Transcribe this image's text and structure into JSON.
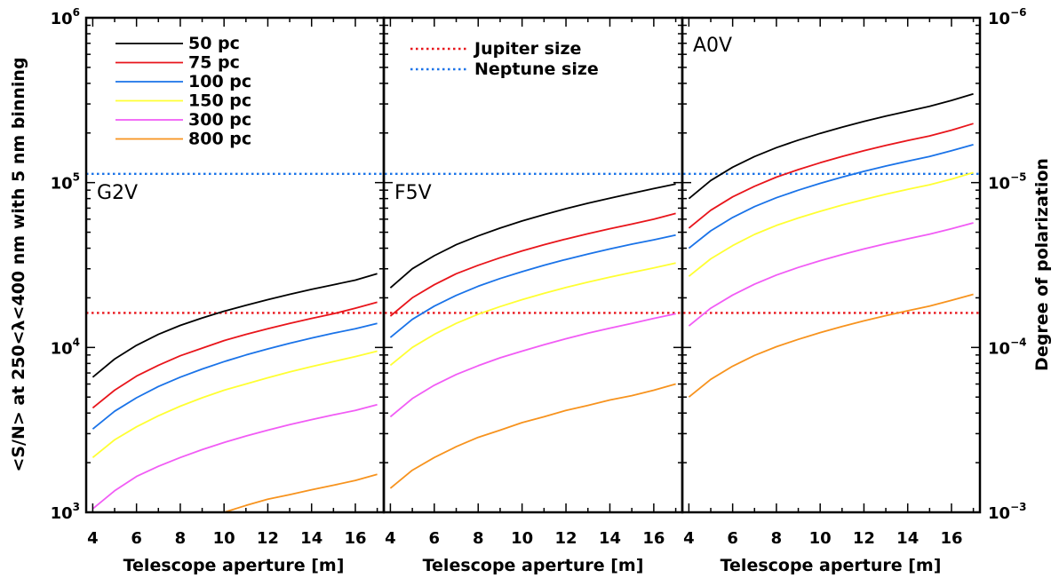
{
  "chart_data": {
    "type": "line",
    "xlabel": "Telescope aperture [m]",
    "ylabel": "<S/N> at 250<λ<400 nm with 5 nm binning",
    "ylabel_right": "Degree of polarization",
    "xlim": [
      3.7,
      17.3
    ],
    "xticks": [
      4,
      6,
      8,
      10,
      12,
      14,
      16
    ],
    "ylim": [
      1000,
      1000000
    ],
    "yscale": "log",
    "yticks_left": [
      {
        "value": 1000,
        "base": "10",
        "exp": "3"
      },
      {
        "value": 10000,
        "base": "10",
        "exp": "4"
      },
      {
        "value": 100000,
        "base": "10",
        "exp": "5"
      },
      {
        "value": 1000000,
        "base": "10",
        "exp": "6"
      }
    ],
    "yticks_right": [
      {
        "value": 1000,
        "base": "10",
        "exp": "−3"
      },
      {
        "value": 10000,
        "base": "10",
        "exp": "−4"
      },
      {
        "value": 100000,
        "base": "10",
        "exp": "−5"
      },
      {
        "value": 1000000,
        "base": "10",
        "exp": "−6"
      }
    ],
    "x": [
      4,
      5,
      6,
      7,
      8,
      9,
      10,
      11,
      12,
      13,
      14,
      15,
      16,
      17
    ],
    "colors": {
      "50 pc": "#000000",
      "75 pc": "#e8151b",
      "100 pc": "#1a73e8",
      "150 pc": "#ffff33",
      "300 pc": "#f15cf5",
      "800 pc": "#f7931e"
    },
    "reference_lines": [
      {
        "name": "Jupiter size",
        "value": 16200,
        "color": "#e8151b"
      },
      {
        "name": "Neptune size",
        "value": 113000,
        "color": "#1a73e8"
      }
    ],
    "legend_series": [
      "50 pc",
      "75 pc",
      "100 pc",
      "150 pc",
      "300 pc",
      "800 pc"
    ],
    "legend_position": "top-left",
    "ref_legend_position": "top-center (middle panel)",
    "panels": [
      {
        "title": "G2V",
        "series": [
          {
            "name": "50 pc",
            "values": [
              6600,
              8500,
              10300,
              12000,
              13600,
              15100,
              16600,
              18000,
              19500,
              21000,
              22500,
              24000,
              25600,
              28000
            ]
          },
          {
            "name": "75 pc",
            "values": [
              4300,
              5500,
              6700,
              7800,
              8900,
              9900,
              11000,
              12000,
              13000,
              14000,
              15000,
              16000,
              17300,
              18800
            ]
          },
          {
            "name": "100 pc",
            "values": [
              3200,
              4100,
              4950,
              5800,
              6600,
              7400,
              8200,
              9000,
              9800,
              10600,
              11400,
              12200,
              13000,
              14000
            ]
          },
          {
            "name": "150 pc",
            "values": [
              2150,
              2750,
              3300,
              3850,
              4400,
              4950,
              5500,
              6000,
              6550,
              7100,
              7650,
              8200,
              8800,
              9500
            ]
          },
          {
            "name": "300 pc",
            "values": [
              1050,
              1350,
              1650,
              1900,
              2150,
              2400,
              2650,
              2900,
              3150,
              3400,
              3650,
              3900,
              4150,
              4500
            ]
          },
          {
            "name": "800 pc",
            "values": [
              null,
              null,
              null,
              null,
              null,
              null,
              1000,
              1100,
              1200,
              1280,
              1370,
              1460,
              1560,
              1700
            ]
          }
        ]
      },
      {
        "title": "F5V",
        "series": [
          {
            "name": "50 pc",
            "values": [
              23000,
              30000,
              36000,
              42000,
              47500,
              53000,
              58500,
              64000,
              69500,
              75000,
              80500,
              86000,
              92000,
              98000
            ]
          },
          {
            "name": "75 pc",
            "values": [
              15500,
              20000,
              24000,
              28000,
              31500,
              35000,
              38500,
              42000,
              45500,
              49000,
              52500,
              56000,
              60000,
              65000
            ]
          },
          {
            "name": "100 pc",
            "values": [
              11500,
              14800,
              17800,
              20700,
              23500,
              26200,
              28800,
              31500,
              34200,
              36900,
              39600,
              42300,
              45000,
              48000
            ]
          },
          {
            "name": "150 pc",
            "values": [
              7800,
              10000,
              12000,
              14000,
              15900,
              17700,
              19500,
              21300,
              23100,
              24900,
              26700,
              28500,
              30400,
              32500
            ]
          },
          {
            "name": "300 pc",
            "values": [
              3800,
              4900,
              5900,
              6850,
              7750,
              8650,
              9500,
              10400,
              11300,
              12200,
              13100,
              14000,
              15000,
              16000
            ]
          },
          {
            "name": "800 pc",
            "values": [
              1400,
              1800,
              2150,
              2500,
              2850,
              3150,
              3500,
              3800,
              4150,
              4450,
              4800,
              5100,
              5500,
              6000
            ]
          }
        ]
      },
      {
        "title": "A0V",
        "series": [
          {
            "name": "50 pc",
            "values": [
              80000,
              103000,
              124000,
              144000,
              163000,
              181000,
              199000,
              217000,
              235000,
              253000,
              271000,
              290000,
              315000,
              345000
            ]
          },
          {
            "name": "75 pc",
            "values": [
              53000,
              68000,
              82000,
              95000,
              108000,
              120000,
              132000,
              144000,
              156000,
              168000,
              180000,
              192000,
              208000,
              228000
            ]
          },
          {
            "name": "100 pc",
            "values": [
              40000,
              51000,
              61500,
              71500,
              81000,
              90000,
              99000,
              108000,
              117000,
              126000,
              135000,
              144000,
              156000,
              170000
            ]
          },
          {
            "name": "150 pc",
            "values": [
              27000,
              34500,
              41500,
              48500,
              55000,
              61000,
              67000,
              73000,
              79000,
              85000,
              91000,
              97000,
              105000,
              115000
            ]
          },
          {
            "name": "300 pc",
            "values": [
              13500,
              17300,
              20800,
              24200,
              27500,
              30600,
              33600,
              36600,
              39600,
              42600,
              45600,
              48600,
              52500,
              57000
            ]
          },
          {
            "name": "800 pc",
            "values": [
              5000,
              6400,
              7700,
              8950,
              10100,
              11200,
              12300,
              13400,
              14500,
              15600,
              16700,
              17800,
              19300,
              21000
            ]
          }
        ]
      }
    ]
  }
}
